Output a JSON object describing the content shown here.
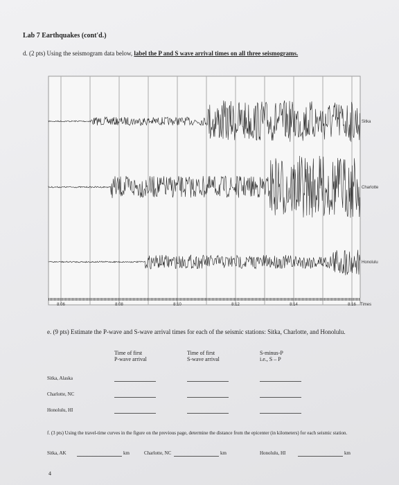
{
  "header": {
    "title": "Lab 7 Earthquakes (cont'd.)"
  },
  "question_d": {
    "text": "d. (2 pts) Using the seismogram data below, ",
    "emphasis": "label the P and S wave arrival times on all three seismograms."
  },
  "figure": {
    "stations": [
      "Sitka",
      "Charlotte",
      "Honolulu"
    ],
    "time_labels": [
      "8:06",
      "8:08",
      "8:10",
      "8:12",
      "8:14",
      "8:16"
    ],
    "axis_label": "Times"
  },
  "question_e": {
    "text": "e. (9 pts) Estimate the P-wave and S-wave arrival times for each of the seismic stations: Sitka, Charlotte, and Honolulu."
  },
  "table": {
    "columns": [
      "Time of first\nP-wave arrival",
      "Time of first\nS-wave arrival",
      "S-minus-P\ni.e., S – P"
    ],
    "rows": [
      "Sitka, Alaska",
      "Charlotte, NC",
      "Honolulu, HI"
    ]
  },
  "question_f": {
    "text": "f. (3 pts) Using the travel-time curves in the figure on the previous page, determine the distance from the epicenter (in kilometers) for each seismic station.",
    "fields": [
      {
        "label": "Sitka, AK",
        "unit": "km"
      },
      {
        "label": "Charlotte, NC",
        "unit": "km"
      },
      {
        "label": "Honolulu, HI",
        "unit": "km"
      }
    ]
  },
  "page_number": "4"
}
